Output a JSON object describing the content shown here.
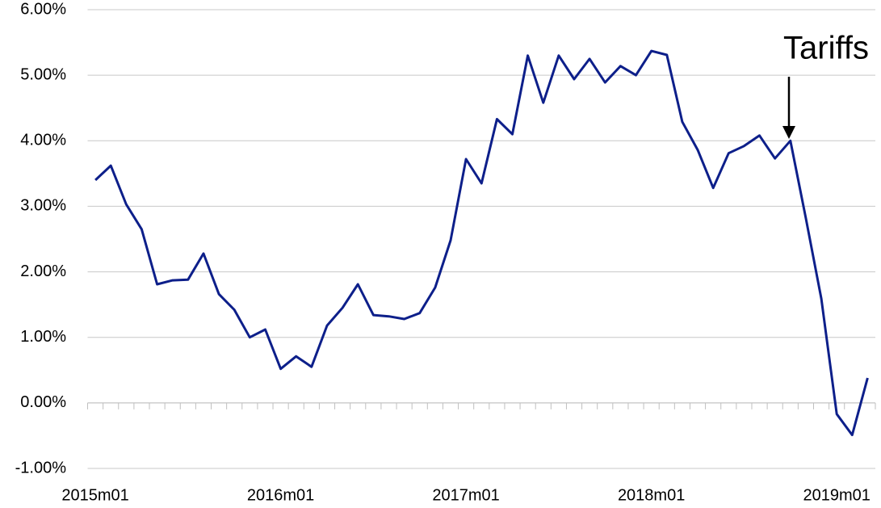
{
  "chart_data": {
    "type": "line",
    "categories": [
      "2015m01",
      null,
      null,
      null,
      null,
      null,
      null,
      null,
      null,
      null,
      null,
      null,
      "2016m01",
      null,
      null,
      null,
      null,
      null,
      null,
      null,
      null,
      null,
      null,
      null,
      "2017m01",
      null,
      null,
      null,
      null,
      null,
      null,
      null,
      null,
      null,
      null,
      null,
      "2018m01",
      null,
      null,
      null,
      null,
      null,
      null,
      null,
      null,
      null,
      null,
      null,
      "2019m01",
      null,
      null
    ],
    "series": [
      {
        "color": "#0d1f8a",
        "values": [
          3.4,
          3.62,
          3.03,
          2.65,
          1.81,
          1.87,
          1.88,
          2.28,
          1.66,
          1.42,
          1.0,
          1.12,
          0.52,
          0.71,
          0.55,
          1.18,
          1.45,
          1.81,
          1.34,
          1.32,
          1.28,
          1.37,
          1.76,
          2.48,
          3.72,
          3.35,
          4.33,
          4.1,
          5.3,
          4.58,
          5.3,
          4.94,
          5.25,
          4.89,
          5.14,
          5.0,
          5.37,
          5.31,
          4.29,
          3.86,
          3.28,
          3.81,
          3.92,
          4.08,
          3.73,
          4.0,
          2.82,
          1.59,
          -0.17,
          -0.49,
          0.38
        ]
      }
    ],
    "ylim": [
      -1,
      6
    ],
    "yticks": [
      {
        "value": -1,
        "label": "-1.00%"
      },
      {
        "value": 0,
        "label": "0.00%"
      },
      {
        "value": 1,
        "label": "1.00%"
      },
      {
        "value": 2,
        "label": "2.00%"
      },
      {
        "value": 3,
        "label": "3.00%"
      },
      {
        "value": 4,
        "label": "4.00%"
      },
      {
        "value": 5,
        "label": "5.00%"
      },
      {
        "value": 6,
        "label": "6.00%"
      }
    ],
    "grid": true,
    "annotation": "Tariffs"
  }
}
